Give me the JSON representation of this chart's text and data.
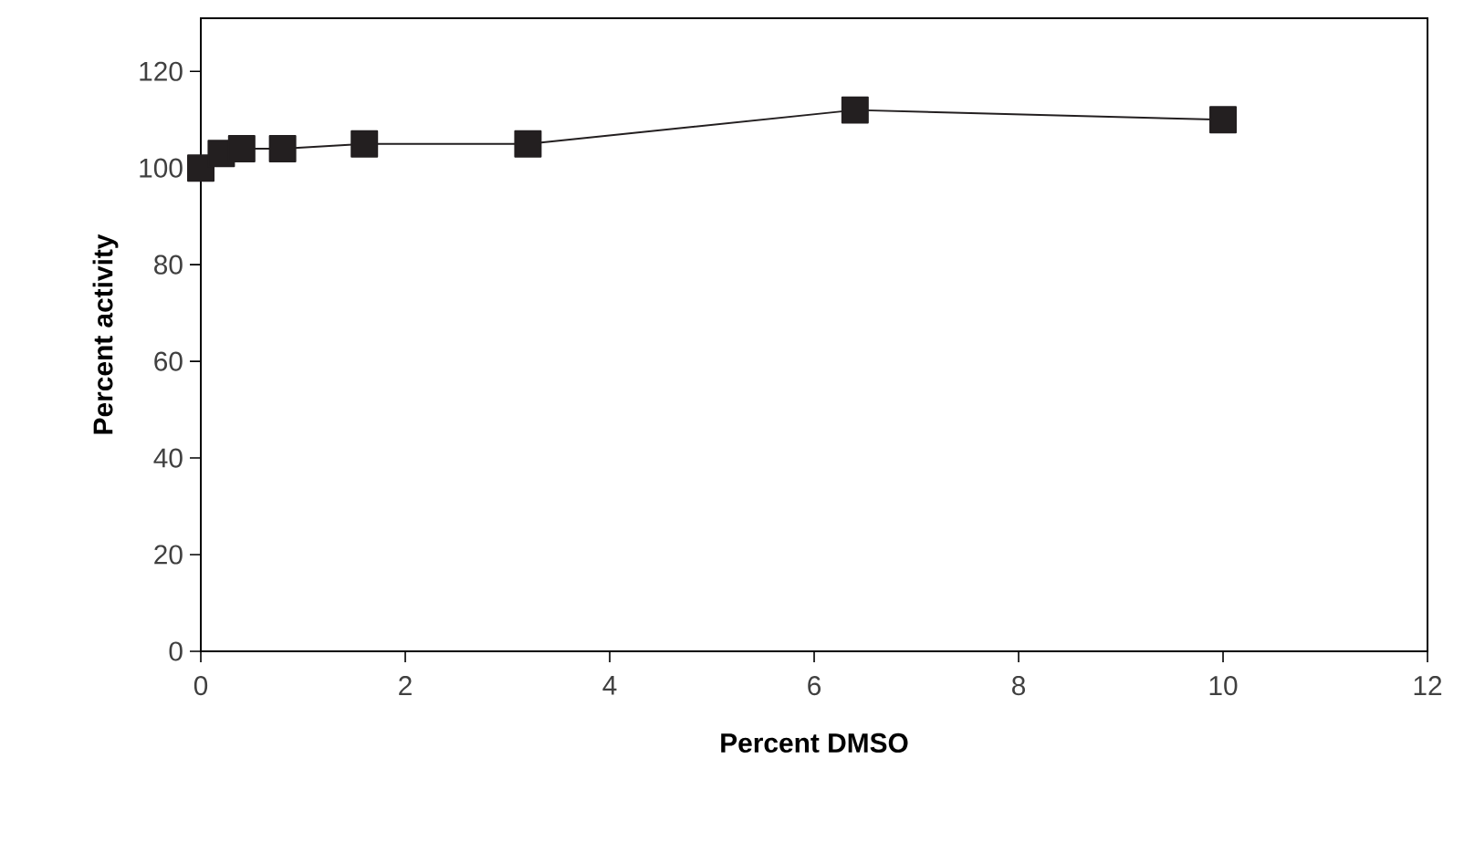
{
  "chart_data": {
    "type": "line",
    "xlabel": "Percent DMSO",
    "ylabel": "Percent activity",
    "x": [
      0,
      0.2,
      0.4,
      0.8,
      1.6,
      3.2,
      6.4,
      10
    ],
    "series": [
      {
        "color": "#231f20",
        "values": [
          100,
          103,
          104,
          104,
          105,
          105,
          112,
          110
        ]
      }
    ],
    "xlim": [
      0,
      12
    ],
    "xticks": [
      0,
      2,
      4,
      6,
      8,
      10,
      12
    ],
    "ylim": [
      0,
      131
    ],
    "yticks": [
      0,
      20,
      40,
      60,
      80,
      100,
      120
    ],
    "marker": "square",
    "line_style": "solid"
  }
}
